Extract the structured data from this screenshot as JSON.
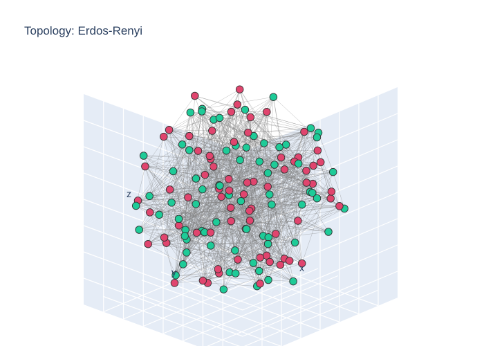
{
  "chart_data": {
    "type": "scatter3d",
    "title": "Topology: Erdos-Renyi",
    "axes": {
      "x": "x",
      "y": "y",
      "z": "z"
    },
    "grid": true,
    "legend": "none",
    "colors": {
      "scene_background": "#e5ecf6",
      "grid": "#ffffff",
      "edges": "#808080",
      "group_a": "#e0456e",
      "group_b": "#1ecb98",
      "marker_outline": "#333333"
    },
    "series": [
      {
        "color": "#e0456e",
        "x": [
          0.85,
          0.78,
          0.51,
          -0.72,
          -0.43,
          0.11,
          0.29,
          -0.06,
          0.16,
          -0.38,
          0.39,
          0.93,
          -0.47,
          0.06,
          0.24,
          -0.11,
          0.85,
          -0.61,
          0.43,
          -0.11,
          0.78,
          0.05,
          0.36,
          0.03,
          0.48,
          0.61,
          -0.73,
          0.38,
          0.15,
          -0.54,
          0.21,
          -0.09,
          -0.27,
          0.58,
          0.76,
          0.45,
          -0.11,
          -0.34,
          0.68,
          0.1,
          0.61,
          -0.3,
          -0.57,
          -0.03,
          -0.49,
          -0.83,
          -0.57,
          0.22,
          0.67,
          -0.66,
          0.55,
          -0.58,
          0.11,
          -0.6,
          -0.41,
          -0.39,
          -0.88,
          -0.49,
          -0.24,
          0.49,
          -0.28,
          -0.43,
          -0.5,
          0.18,
          -0.09,
          -0.01,
          0.11,
          0.1,
          -0.72,
          0.45,
          -0.44,
          -0.51
        ],
        "y": [
          0.36,
          -0.13,
          -0.65,
          -0.19,
          -0.43,
          0.91,
          0.17,
          -0.91,
          0.2,
          -0.04,
          0.15,
          0.39,
          0.51,
          0.74,
          0.37,
          -0.68,
          -0.29,
          -0.74,
          -0.38,
          0.74,
          0.17,
          0.33,
          -0.57,
          -0.82,
          0.24,
          -0.65,
          -0.35,
          -0.35,
          -0.54,
          0.64,
          0.15,
          0.2,
          0.11,
          -0.15,
          0.43,
          -0.33,
          -0.49,
          -0.39,
          0.56,
          0.49,
          0.29,
          0.65,
          -0.5,
          -0.15,
          0.73,
          -0.19,
          0.4,
          0.14,
          0.52,
          -0.31,
          -0.43,
          0.73,
          0.68,
          -0.47,
          0.17,
          0.06,
          0.01,
          -0.6,
          -0.77,
          0.05,
          -0.16,
          0.73,
          -0.36,
          0.61,
          -0.43,
          0.11,
          0.6,
          -0.93,
          -0.49,
          0.74,
          -0.41,
          0.4
        ],
        "z": [
          -0.31,
          0.29,
          -0.02,
          0.17,
          0.76,
          0.03,
          0.88,
          -0.06,
          -0.5,
          0.16,
          -0.68,
          -0.22,
          0.59,
          0.23,
          -0.06,
          0.01,
          0.12,
          -0.54,
          0.61,
          -0.63,
          -0.35,
          -0.62,
          0.21,
          -0.12,
          -0.38,
          -0.13,
          0.07,
          -0.24,
          0.2,
          -0.41,
          -0.21,
          -0.66,
          -0.39,
          0.48,
          0.43,
          -0.62,
          -0.81,
          -0.2,
          0.24,
          0.53,
          -0.31,
          -0.33,
          0.2,
          -0.29,
          0.37,
          0.28,
          -0.43,
          0.23,
          0.48,
          0.34,
          0.45,
          0.02,
          -0.11,
          -0.26,
          0.89,
          0.11,
          -0.18,
          0.28,
          0.06,
          -0.21,
          -0.24,
          -0.05,
          -0.09,
          -0.59,
          0.64,
          0.83,
          -0.59,
          0.06,
          -0.36,
          0.42,
          0.62,
          0.61
        ]
      },
      {
        "color": "#1ecb98",
        "x": [
          -0.13,
          0.1,
          0.28,
          -0.78,
          -0.27,
          0.72,
          -0.59,
          -0.1,
          -0.19,
          -0.23,
          0.62,
          0.64,
          0.09,
          -0.29,
          0.51,
          -0.66,
          -0.84,
          0.81,
          -0.47,
          0.64,
          0.25,
          -0.78,
          0.54,
          0.13,
          -0.01,
          -0.35,
          0.12,
          -0.17,
          0.39,
          -0.44,
          0.26,
          -0.32,
          -0.8,
          0.73,
          -0.31,
          0.44,
          -0.49,
          0.47,
          -0.12,
          0.2,
          -0.5,
          0.13,
          -0.13,
          -0.23,
          -0.62,
          -0.29,
          0.09,
          -0.35,
          0.48,
          -0.3,
          0.51,
          0.38,
          0.52,
          -0.12,
          0.23,
          -0.11,
          0.84,
          0.01,
          -0.43,
          -0.13,
          0.35,
          -0.29,
          0.31,
          -0.77,
          -0.09,
          0.75,
          0.19,
          0.51,
          -0.29,
          0.14,
          -0.78,
          -0.44
        ],
        "y": [
          0.18,
          0.8,
          0.78,
          0.51,
          0.3,
          0.5,
          -0.11,
          0.56,
          -0.13,
          0.15,
          -0.29,
          -0.24,
          0.79,
          0.35,
          0.15,
          0.5,
          0.39,
          0.13,
          0.26,
          0.3,
          -0.73,
          0.55,
          -0.45,
          0.71,
          -0.18,
          -0.86,
          -0.3,
          -0.25,
          0.62,
          0.27,
          -0.32,
          -0.06,
          -0.55,
          0.07,
          0.52,
          0.16,
          -0.56,
          0.24,
          -0.56,
          -0.78,
          -0.45,
          -0.22,
          0.05,
          -0.31,
          -0.64,
          -0.7,
          -0.21,
          0.44,
          0.28,
          -0.66,
          -0.61,
          0.03,
          0.37,
          0.63,
          -0.67,
          -0.86,
          0.07,
          0.16,
          0.61,
          0.58,
          0.86,
          0.05,
          0.46,
          -0.29,
          -0.02,
          -0.57,
          0.66,
          -0.67,
          -0.29,
          0.42,
          0.07,
          0.44
        ],
        "z": [
          -0.23,
          -0.14,
          0.38,
          -0.38,
          -0.06,
          -0.36,
          0.63,
          0.58,
          -0.83,
          -0.49,
          0.11,
          0.14,
          -0.27,
          0.82,
          0.2,
          -0.03,
          0.27,
          -0.18,
          -0.7,
          -0.53,
          -0.18,
          -0.14,
          0.61,
          0.42,
          0.51,
          0.1,
          0.88,
          -0.44,
          -0.59,
          -0.42,
          0.46,
          -0.01,
          0.35,
          -0.59,
          -0.68,
          -0.21,
          0.51,
          0.53,
          0.09,
          0.37,
          0.2,
          -0.49,
          0.41,
          0.3,
          -0.42,
          -0.38,
          0.46,
          -0.18,
          -0.64,
          -0.07,
          -0.39,
          -0.28,
          -0.38,
          0.65,
          0.5,
          0.01,
          0.17,
          0.06,
          -0.11,
          -0.18,
          0.03,
          0.66,
          -0.5,
          0.5,
          -0.55,
          -0.09,
          -0.09,
          0.16,
          0.17,
          0.27,
          0.04,
          -0.05
        ]
      }
    ]
  }
}
